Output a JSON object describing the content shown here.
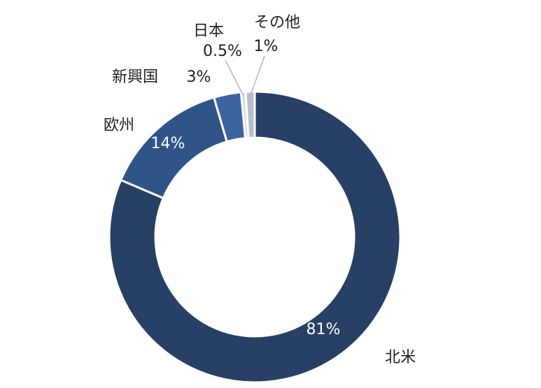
{
  "chart_data": {
    "type": "pie",
    "donut": true,
    "title": "",
    "categories": [
      "北米",
      "欧州",
      "新興国",
      "日本",
      "その他"
    ],
    "values": [
      81,
      14,
      3,
      0.5,
      1
    ],
    "value_labels": [
      "81%",
      "14%",
      "3%",
      "0.5%",
      "1%"
    ],
    "colors": [
      "#283f66",
      "#2f5488",
      "#3d63a0",
      "#d6dae3",
      "#b8bfcc"
    ],
    "legend": "none"
  }
}
